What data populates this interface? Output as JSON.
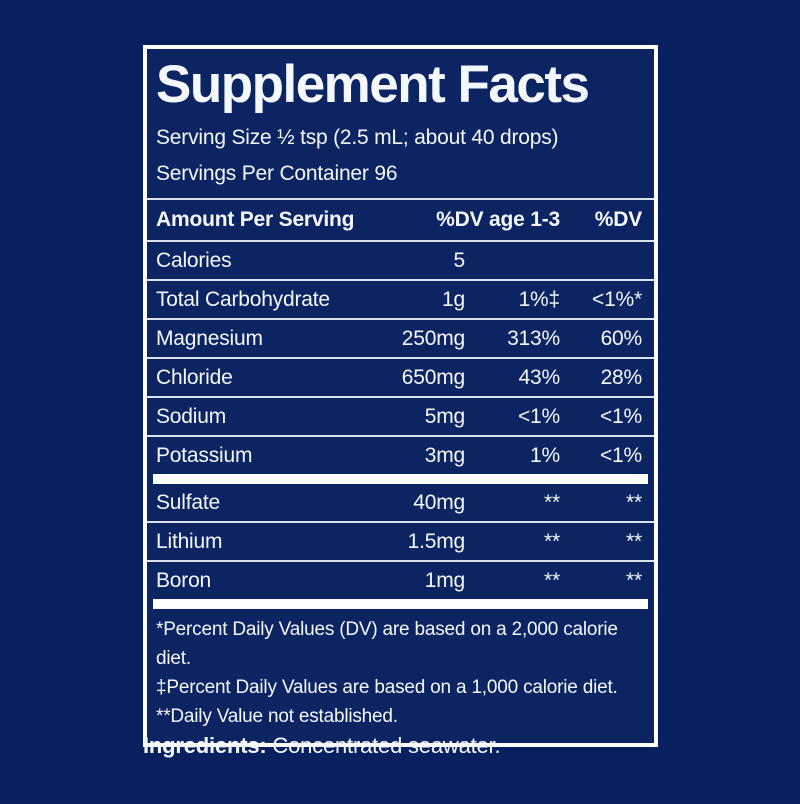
{
  "colors": {
    "background": "#092060",
    "panel_background": "#0d2462",
    "panel_border": "#ffffff",
    "separator_line": "#dbe2f0",
    "thick_bar": "#ffffff",
    "text": "#f4f7fc"
  },
  "panel": {
    "title": "Supplement Facts",
    "serving_size": "Serving Size ½ tsp (2.5 mL; about 40 drops)",
    "servings_per_container": "Servings Per Container 96",
    "header": {
      "amount_col": "Amount Per Serving",
      "dv_age_col": "%DV age 1-3",
      "dv_col": "%DV"
    },
    "rows": [
      {
        "name": "Calories",
        "amount": "5",
        "dv_age": "",
        "dv": ""
      },
      {
        "name": "Total Carbohydrate",
        "amount": "1g",
        "dv_age": "1%‡",
        "dv": "<1%*"
      },
      {
        "name": "Magnesium",
        "amount": "250mg",
        "dv_age": "313%",
        "dv": "60%"
      },
      {
        "name": "Chloride",
        "amount": "650mg",
        "dv_age": "43%",
        "dv": "28%"
      },
      {
        "name": "Sodium",
        "amount": "5mg",
        "dv_age": "<1%",
        "dv": "<1%"
      },
      {
        "name": "Potassium",
        "amount": "3mg",
        "dv_age": "1%",
        "dv": "<1%"
      },
      {
        "name": "Sulfate",
        "amount": "40mg",
        "dv_age": "**",
        "dv": "**"
      },
      {
        "name": "Lithium",
        "amount": "1.5mg",
        "dv_age": "**",
        "dv": "**"
      },
      {
        "name": "Boron",
        "amount": "1mg",
        "dv_age": "**",
        "dv": "**"
      }
    ],
    "footnotes": [
      "*Percent Daily Values (DV) are based on a 2,000 calorie diet.",
      "‡Percent Daily Values are based on a 1,000 calorie diet.",
      "**Daily Value not established."
    ]
  },
  "ingredients": {
    "label": "Ingredients:",
    "text": " Concentrated seawater."
  }
}
